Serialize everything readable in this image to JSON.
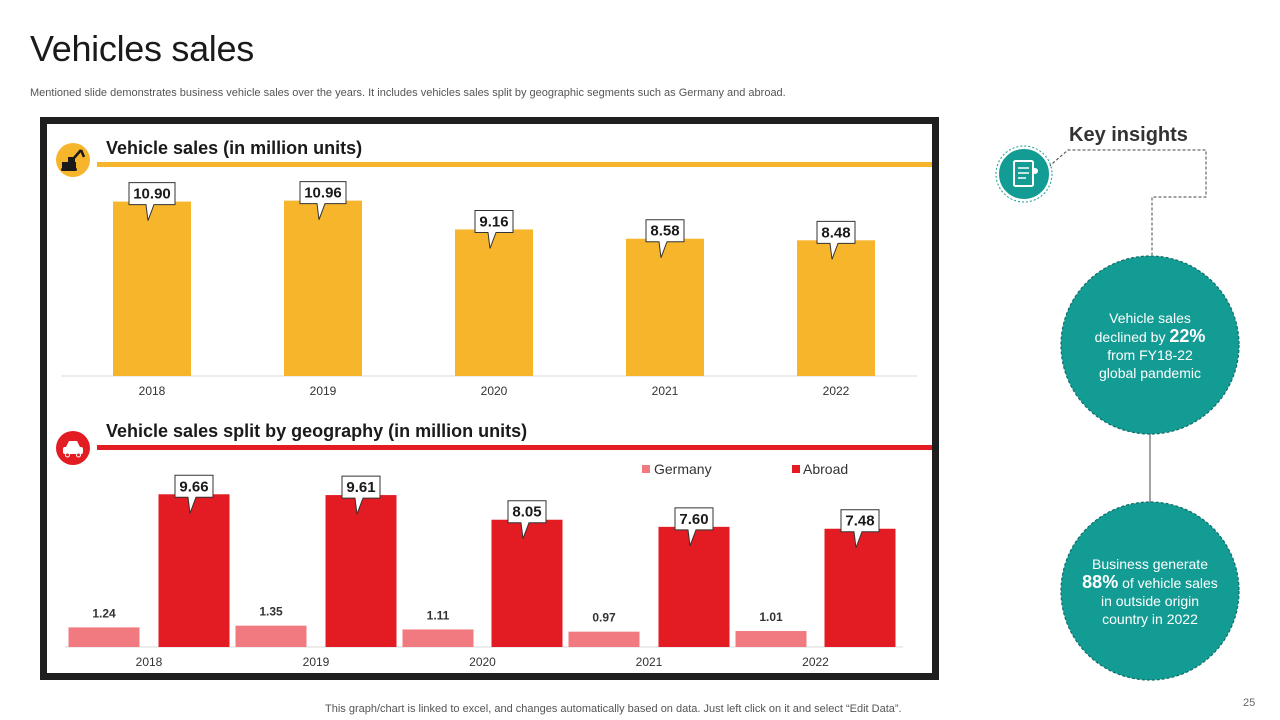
{
  "slide": {
    "title": "Vehicles sales",
    "subtitle": "Mentioned slide demonstrates business vehicle sales over the years. It includes vehicles sales split by geographic segments such as Germany and abroad.",
    "footnote": "This graph/chart is linked to excel,  and changes automatically based on data. Just left click on it and select “Edit Data”.",
    "page_number": "25"
  },
  "colors": {
    "yellow": "#F7B52C",
    "red": "#E31B23",
    "germany": "#F07A80",
    "teal": "#139C94",
    "frame": "#1f1f1f"
  },
  "icons": {
    "chart1": "excavator-icon",
    "chart2": "car-icon",
    "insights": "notebook-icon"
  },
  "chart_data": [
    {
      "type": "bar",
      "title": "Vehicle sales (in million units)",
      "categories": [
        "2018",
        "2019",
        "2020",
        "2021",
        "2022"
      ],
      "values": [
        10.9,
        10.96,
        9.16,
        8.58,
        8.48
      ],
      "labels": [
        "10.90",
        "10.96",
        "9.16",
        "8.58",
        "8.48"
      ],
      "ylim": [
        0,
        12
      ],
      "grid": false,
      "legend": "none"
    },
    {
      "type": "bar",
      "title": "Vehicle sales split by geography (in million units)",
      "categories": [
        "2018",
        "2019",
        "2020",
        "2021",
        "2022"
      ],
      "series": [
        {
          "name": "Germany",
          "values": [
            1.24,
            1.35,
            1.11,
            0.97,
            1.01
          ],
          "labels": [
            "1.24",
            "1.35",
            "1.11",
            "0.97",
            "1.01"
          ]
        },
        {
          "name": "Abroad",
          "values": [
            9.66,
            9.61,
            8.05,
            7.6,
            7.48
          ],
          "labels": [
            "9.66",
            "9.61",
            "8.05",
            "7.60",
            "7.48"
          ]
        }
      ],
      "ylim": [
        0,
        10.5
      ],
      "grid": false,
      "legend": "top-right"
    }
  ],
  "insights": {
    "title": "Key insights",
    "items": [
      {
        "pre": "Vehicle sales",
        "mid": "declined by ",
        "value": "22%",
        "post1": "from FY18-22",
        "post2": "global pandemic"
      },
      {
        "pre": "Business generate",
        "value": "88%",
        "mid": " of vehicle sales",
        "post1": "in outside origin",
        "post2": "country in 2022"
      }
    ]
  }
}
